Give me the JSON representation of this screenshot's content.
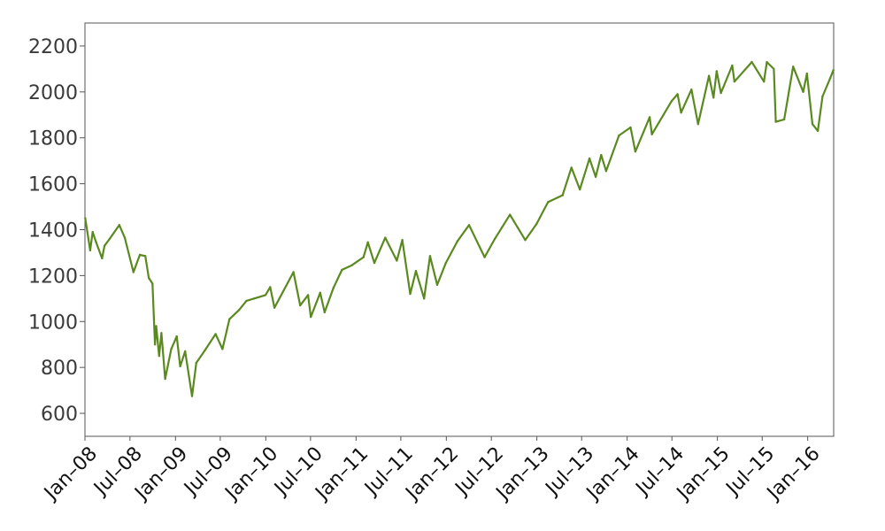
{
  "chart_data": {
    "type": "line",
    "title": "",
    "xlabel": "",
    "ylabel": "",
    "grid": false,
    "legend": "none",
    "line_color": "#5a8a1f",
    "xlim": [
      "2008-01-01",
      "2016-04-15"
    ],
    "ylim": [
      500,
      2300
    ],
    "y_ticks": [
      600,
      800,
      1000,
      1200,
      1400,
      1600,
      1800,
      2000,
      2200
    ],
    "x_ticks": [
      {
        "date": "2008-01-01",
        "label": "Jan–08"
      },
      {
        "date": "2008-07-01",
        "label": "Jul–08"
      },
      {
        "date": "2009-01-01",
        "label": "Jan–09"
      },
      {
        "date": "2009-07-01",
        "label": "Jul–09"
      },
      {
        "date": "2010-01-01",
        "label": "Jan–10"
      },
      {
        "date": "2010-07-01",
        "label": "Jul–10"
      },
      {
        "date": "2011-01-01",
        "label": "Jan–11"
      },
      {
        "date": "2011-07-01",
        "label": "Jul–11"
      },
      {
        "date": "2012-01-01",
        "label": "Jan–12"
      },
      {
        "date": "2012-07-01",
        "label": "Jul–12"
      },
      {
        "date": "2013-01-01",
        "label": "Jan–13"
      },
      {
        "date": "2013-07-01",
        "label": "Jul–13"
      },
      {
        "date": "2014-01-01",
        "label": "Jan–14"
      },
      {
        "date": "2014-07-01",
        "label": "Jul–14"
      },
      {
        "date": "2015-01-01",
        "label": "Jan–15"
      },
      {
        "date": "2015-07-01",
        "label": "Jul–15"
      },
      {
        "date": "2016-01-01",
        "label": "Jan–16"
      }
    ],
    "series": [
      {
        "points": [
          [
            "2008-01-02",
            1450
          ],
          [
            "2008-01-22",
            1310
          ],
          [
            "2008-02-01",
            1390
          ],
          [
            "2008-02-15",
            1345
          ],
          [
            "2008-03-10",
            1275
          ],
          [
            "2008-03-20",
            1330
          ],
          [
            "2008-04-10",
            1360
          ],
          [
            "2008-05-19",
            1420
          ],
          [
            "2008-06-10",
            1365
          ],
          [
            "2008-07-15",
            1215
          ],
          [
            "2008-08-10",
            1290
          ],
          [
            "2008-09-01",
            1285
          ],
          [
            "2008-09-15",
            1190
          ],
          [
            "2008-09-30",
            1165
          ],
          [
            "2008-10-10",
            900
          ],
          [
            "2008-10-15",
            980
          ],
          [
            "2008-10-27",
            850
          ],
          [
            "2008-11-05",
            950
          ],
          [
            "2008-11-20",
            750
          ],
          [
            "2008-12-15",
            880
          ],
          [
            "2009-01-06",
            935
          ],
          [
            "2009-01-20",
            805
          ],
          [
            "2009-02-09",
            870
          ],
          [
            "2009-03-09",
            675
          ],
          [
            "2009-03-26",
            820
          ],
          [
            "2009-04-30",
            875
          ],
          [
            "2009-06-12",
            945
          ],
          [
            "2009-07-10",
            880
          ],
          [
            "2009-08-07",
            1010
          ],
          [
            "2009-09-15",
            1050
          ],
          [
            "2009-10-15",
            1090
          ],
          [
            "2009-11-15",
            1100
          ],
          [
            "2009-12-31",
            1115
          ],
          [
            "2010-01-19",
            1150
          ],
          [
            "2010-02-05",
            1060
          ],
          [
            "2010-04-23",
            1215
          ],
          [
            "2010-05-20",
            1070
          ],
          [
            "2010-06-21",
            1115
          ],
          [
            "2010-07-02",
            1020
          ],
          [
            "2010-08-09",
            1125
          ],
          [
            "2010-08-27",
            1040
          ],
          [
            "2010-10-01",
            1145
          ],
          [
            "2010-11-05",
            1225
          ],
          [
            "2010-12-15",
            1245
          ],
          [
            "2011-01-31",
            1280
          ],
          [
            "2011-02-18",
            1345
          ],
          [
            "2011-03-16",
            1255
          ],
          [
            "2011-04-29",
            1365
          ],
          [
            "2011-06-15",
            1265
          ],
          [
            "2011-07-07",
            1355
          ],
          [
            "2011-08-08",
            1120
          ],
          [
            "2011-08-31",
            1220
          ],
          [
            "2011-10-03",
            1100
          ],
          [
            "2011-10-27",
            1285
          ],
          [
            "2011-11-25",
            1160
          ],
          [
            "2011-12-30",
            1255
          ],
          [
            "2012-02-15",
            1350
          ],
          [
            "2012-04-02",
            1420
          ],
          [
            "2012-06-04",
            1280
          ],
          [
            "2012-07-15",
            1360
          ],
          [
            "2012-09-14",
            1465
          ],
          [
            "2012-11-15",
            1355
          ],
          [
            "2012-12-31",
            1425
          ],
          [
            "2013-02-15",
            1520
          ],
          [
            "2013-04-15",
            1550
          ],
          [
            "2013-05-21",
            1670
          ],
          [
            "2013-06-24",
            1575
          ],
          [
            "2013-08-02",
            1710
          ],
          [
            "2013-08-27",
            1630
          ],
          [
            "2013-09-18",
            1725
          ],
          [
            "2013-10-08",
            1655
          ],
          [
            "2013-11-29",
            1810
          ],
          [
            "2014-01-15",
            1845
          ],
          [
            "2014-02-03",
            1740
          ],
          [
            "2014-04-02",
            1890
          ],
          [
            "2014-04-11",
            1815
          ],
          [
            "2014-06-30",
            1960
          ],
          [
            "2014-07-24",
            1990
          ],
          [
            "2014-08-07",
            1910
          ],
          [
            "2014-09-18",
            2010
          ],
          [
            "2014-10-15",
            1860
          ],
          [
            "2014-11-28",
            2070
          ],
          [
            "2014-12-16",
            1975
          ],
          [
            "2014-12-29",
            2090
          ],
          [
            "2015-01-15",
            1995
          ],
          [
            "2015-03-02",
            2115
          ],
          [
            "2015-03-11",
            2045
          ],
          [
            "2015-05-20",
            2130
          ],
          [
            "2015-07-08",
            2045
          ],
          [
            "2015-07-20",
            2130
          ],
          [
            "2015-08-17",
            2100
          ],
          [
            "2015-08-25",
            1870
          ],
          [
            "2015-09-28",
            1880
          ],
          [
            "2015-11-03",
            2110
          ],
          [
            "2015-12-14",
            2000
          ],
          [
            "2015-12-29",
            2080
          ],
          [
            "2016-01-20",
            1860
          ],
          [
            "2016-02-11",
            1830
          ],
          [
            "2016-03-01",
            1980
          ],
          [
            "2016-04-01",
            2060
          ],
          [
            "2016-04-14",
            2095
          ]
        ]
      }
    ]
  }
}
